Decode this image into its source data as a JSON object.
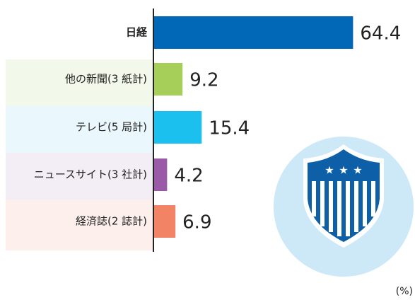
{
  "chart_data": {
    "type": "bar",
    "orientation": "horizontal",
    "categories": [
      "日経",
      "他の新聞(3 紙計)",
      "テレビ(5 局計)",
      "ニュースサイト(3 社計)",
      "経済誌(2 誌計)"
    ],
    "values": [
      64.4,
      9.2,
      15.4,
      4.2,
      6.9
    ],
    "colors": [
      "#0068b7",
      "#a6cf5a",
      "#1cc0ef",
      "#9b5aa8",
      "#f28365"
    ],
    "xlim": [
      0,
      65
    ],
    "unit": "(%)"
  }
}
